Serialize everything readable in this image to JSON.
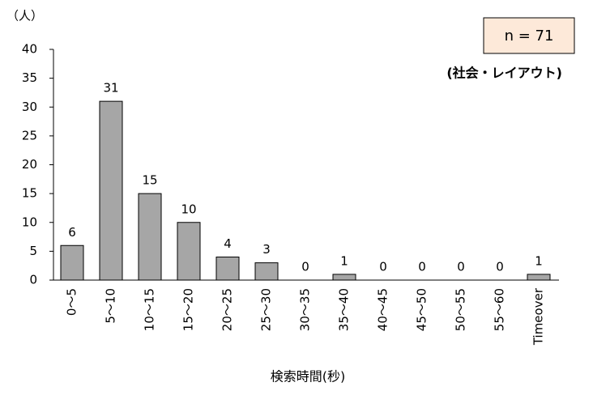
{
  "chart_data": {
    "type": "bar",
    "y_axis_label": "（人）",
    "x_axis_label": "検索時間(秒)",
    "annotation": "(社会・レイアウト)",
    "sample_size": "n = 71",
    "categories": [
      "0～5",
      "5～10",
      "10～15",
      "15～20",
      "20～25",
      "25～30",
      "30～35",
      "35～40",
      "40～45",
      "45～50",
      "50～55",
      "55～60",
      "Timeover"
    ],
    "values": [
      6,
      31,
      15,
      10,
      4,
      3,
      0,
      1,
      0,
      0,
      0,
      0,
      1
    ],
    "color": "#a6a6a6",
    "ylim": [
      0,
      40
    ],
    "yticks": [
      0,
      5,
      10,
      15,
      20,
      25,
      30,
      35,
      40
    ],
    "grid": false
  }
}
